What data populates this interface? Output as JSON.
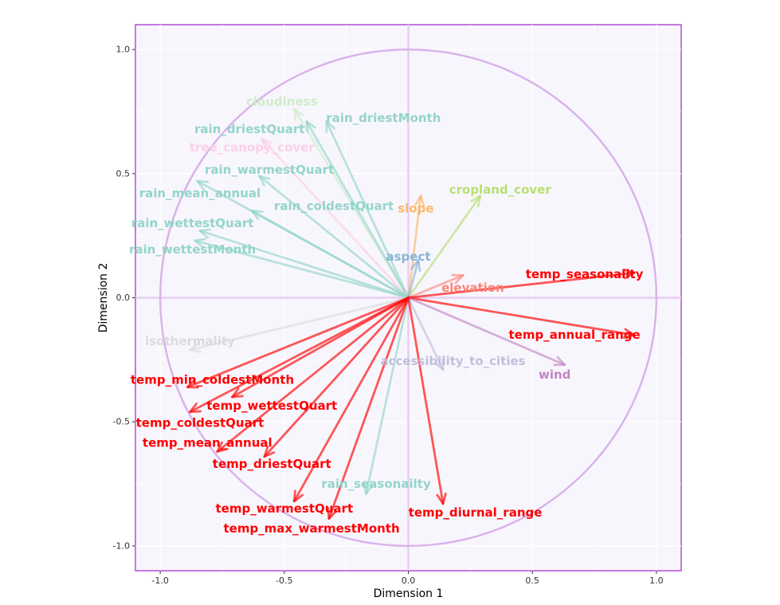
{
  "chart_data": {
    "type": "scatter",
    "subtype": "pca-variable-correlation-circle",
    "title": "",
    "xlabel": "Dimension 1",
    "ylabel": "Dimension 2",
    "xlim": [
      -1.1,
      1.1
    ],
    "ylim": [
      -1.1,
      1.1
    ],
    "x_ticks": [
      -1.0,
      -0.5,
      0.0,
      0.5,
      1.0
    ],
    "y_ticks": [
      -1.0,
      -0.5,
      0.0,
      0.5,
      1.0
    ],
    "x_tick_labels": [
      "-1.0",
      "-0.5",
      "0.0",
      "0.5",
      "1.0"
    ],
    "y_tick_labels": [
      "-1.0",
      "-0.5",
      "0.0",
      "0.5",
      "1.0"
    ],
    "unit_circle": true,
    "grid": true,
    "colors": {
      "panel_bg": "#f8f6fd",
      "panel_border": "#b24fd6",
      "circle": "#d9b3eb",
      "zero_lines": "#e8cdf1",
      "grid": "#ffffff",
      "temperature": "#ff0000",
      "rain": "#8dd3c7",
      "cloudiness": "#ccebc5",
      "tree_canopy": "#fccde5",
      "slope": "#fdb462",
      "cropland": "#b3de69",
      "aspect": "#80b1d3",
      "elevation": "#fb8072",
      "accessibility": "#bebada",
      "wind": "#bc80bd",
      "isothermality": "#d9d9d9"
    },
    "variables": [
      {
        "name": "cloudiness",
        "x": -0.46,
        "y": 0.76,
        "color": "#ccebc5",
        "emphasis": false,
        "label_x": -0.51,
        "label_y": 0.79
      },
      {
        "name": "rain_driestMonth",
        "x": -0.33,
        "y": 0.71,
        "color": "#8dd3c7",
        "emphasis": false,
        "label_x": -0.1,
        "label_y": 0.725
      },
      {
        "name": "rain_driestQuart",
        "x": -0.41,
        "y": 0.71,
        "color": "#8dd3c7",
        "emphasis": false,
        "label_x": -0.64,
        "label_y": 0.68
      },
      {
        "name": "tree_canopy_cover",
        "x": -0.59,
        "y": 0.64,
        "color": "#fccde5",
        "emphasis": false,
        "label_x": -0.63,
        "label_y": 0.605
      },
      {
        "name": "rain_warmestQuart",
        "x": -0.6,
        "y": 0.49,
        "color": "#8dd3c7",
        "emphasis": false,
        "label_x": -0.56,
        "label_y": 0.515
      },
      {
        "name": "rain_mean_annual",
        "x": -0.85,
        "y": 0.47,
        "color": "#8dd3c7",
        "emphasis": false,
        "label_x": -0.84,
        "label_y": 0.42
      },
      {
        "name": "rain_coldestQuart",
        "x": -0.63,
        "y": 0.35,
        "color": "#8dd3c7",
        "emphasis": false,
        "label_x": -0.3,
        "label_y": 0.37
      },
      {
        "name": "rain_wettestQuart",
        "x": -0.84,
        "y": 0.27,
        "color": "#8dd3c7",
        "emphasis": false,
        "label_x": -0.87,
        "label_y": 0.3
      },
      {
        "name": "rain_wettestMonth",
        "x": -0.86,
        "y": 0.23,
        "color": "#8dd3c7",
        "emphasis": false,
        "label_x": -0.87,
        "label_y": 0.195
      },
      {
        "name": "slope",
        "x": 0.05,
        "y": 0.41,
        "color": "#fdb462",
        "emphasis": false,
        "label_x": 0.03,
        "label_y": 0.36
      },
      {
        "name": "cropland_cover",
        "x": 0.29,
        "y": 0.41,
        "color": "#b3de69",
        "emphasis": false,
        "label_x": 0.37,
        "label_y": 0.435
      },
      {
        "name": "aspect",
        "x": 0.04,
        "y": 0.15,
        "color": "#80b1d3",
        "emphasis": false,
        "label_x": 0.0,
        "label_y": 0.165
      },
      {
        "name": "elevation",
        "x": 0.22,
        "y": 0.09,
        "color": "#fb8072",
        "emphasis": false,
        "label_x": 0.26,
        "label_y": 0.04
      },
      {
        "name": "temp_seasonality",
        "x": 0.91,
        "y": 0.1,
        "color": "#ff0000",
        "emphasis": true,
        "label_x": 0.71,
        "label_y": 0.095
      },
      {
        "name": "temp_annual_range",
        "x": 0.91,
        "y": -0.15,
        "color": "#ff0000",
        "emphasis": true,
        "label_x": 0.67,
        "label_y": -0.15
      },
      {
        "name": "wind",
        "x": 0.63,
        "y": -0.27,
        "color": "#bc80bd",
        "emphasis": false,
        "label_x": 0.59,
        "label_y": -0.31
      },
      {
        "name": "accessibility_to_cities",
        "x": 0.14,
        "y": -0.29,
        "color": "#bebada",
        "emphasis": false,
        "label_x": 0.18,
        "label_y": -0.255
      },
      {
        "name": "isothermality",
        "x": -0.88,
        "y": -0.21,
        "color": "#d9d9d9",
        "emphasis": false,
        "label_x": -0.88,
        "label_y": -0.175
      },
      {
        "name": "temp_min_coldestMonth",
        "x": -0.89,
        "y": -0.36,
        "color": "#ff0000",
        "emphasis": true,
        "label_x": -0.79,
        "label_y": -0.33
      },
      {
        "name": "temp_wettestQuart",
        "x": -0.71,
        "y": -0.4,
        "color": "#ff0000",
        "emphasis": true,
        "label_x": -0.55,
        "label_y": -0.435
      },
      {
        "name": "temp_coldestQuart",
        "x": -0.88,
        "y": -0.46,
        "color": "#ff0000",
        "emphasis": true,
        "label_x": -0.84,
        "label_y": -0.505
      },
      {
        "name": "temp_mean_annual",
        "x": -0.77,
        "y": -0.62,
        "color": "#ff0000",
        "emphasis": true,
        "label_x": -0.81,
        "label_y": -0.585
      },
      {
        "name": "temp_driestQuart",
        "x": -0.58,
        "y": -0.64,
        "color": "#ff0000",
        "emphasis": true,
        "label_x": -0.55,
        "label_y": -0.67
      },
      {
        "name": "rain_seasonailty",
        "x": -0.17,
        "y": -0.79,
        "color": "#8dd3c7",
        "emphasis": false,
        "label_x": -0.13,
        "label_y": -0.75
      },
      {
        "name": "temp_warmestQuart",
        "x": -0.46,
        "y": -0.82,
        "color": "#ff0000",
        "emphasis": true,
        "label_x": -0.5,
        "label_y": -0.85
      },
      {
        "name": "temp_max_warmestMonth",
        "x": -0.32,
        "y": -0.89,
        "color": "#ff0000",
        "emphasis": true,
        "label_x": -0.39,
        "label_y": -0.93
      },
      {
        "name": "temp_diurnal_range",
        "x": 0.14,
        "y": -0.83,
        "color": "#ff0000",
        "emphasis": true,
        "label_x": 0.27,
        "label_y": -0.865
      }
    ]
  }
}
